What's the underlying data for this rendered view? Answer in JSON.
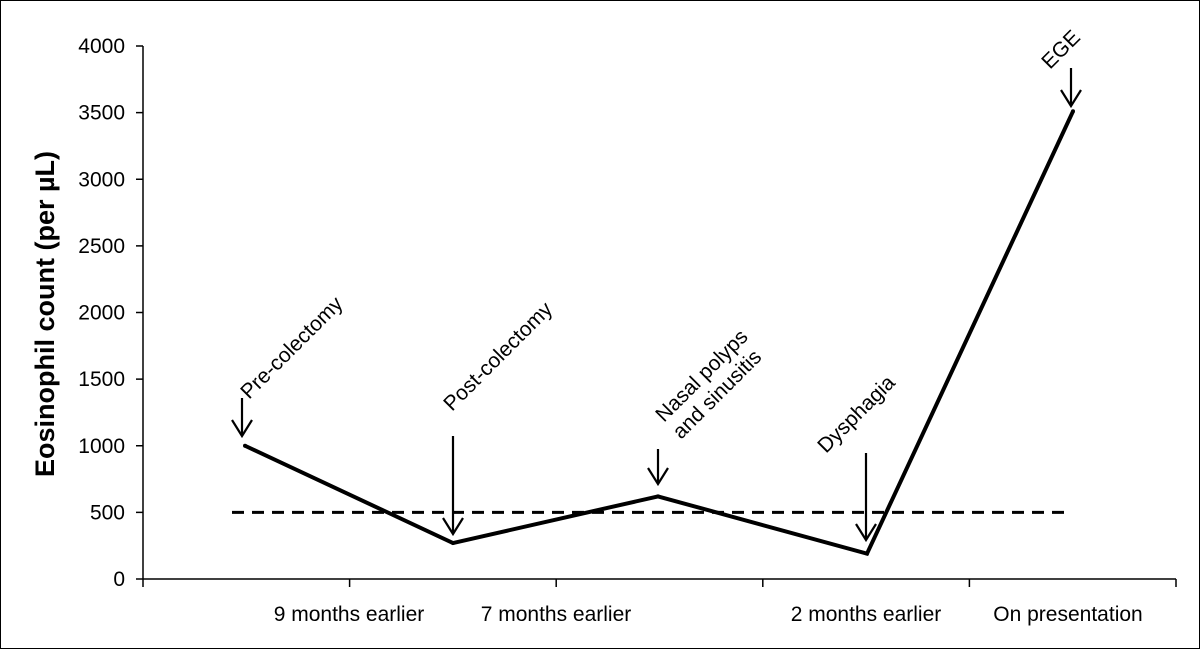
{
  "chart_data": {
    "type": "line",
    "title": "",
    "ylabel": "Eosinophil count (per µL)",
    "xlabel": "",
    "ylim": [
      0,
      4000
    ],
    "yticks": [
      0,
      500,
      1000,
      1500,
      2000,
      2500,
      3000,
      3500,
      4000
    ],
    "grid": false,
    "x_tick_labels": [
      "9 months earlier",
      "7 months earlier",
      "2 months earlier",
      "On presentation"
    ],
    "series": [
      {
        "points": [
          {
            "x": "Pre-colectomy",
            "y": 1000
          },
          {
            "x": "Post-colectomy",
            "y": 270
          },
          {
            "x": "Nasal polyps and sinusitis",
            "y": 620
          },
          {
            "x": "Dysphagia",
            "y": 190
          },
          {
            "x": "EGE",
            "y": 3510
          }
        ]
      }
    ],
    "reference_line": {
      "y": 500,
      "style": "dashed"
    },
    "annotations": [
      {
        "lines": [
          "Pre-colectomy"
        ]
      },
      {
        "lines": [
          "Post-colectomy"
        ]
      },
      {
        "lines": [
          "Nasal polyps",
          "and sinusitis"
        ]
      },
      {
        "lines": [
          "Dysphagia"
        ]
      },
      {
        "lines": [
          "EGE"
        ]
      }
    ]
  }
}
